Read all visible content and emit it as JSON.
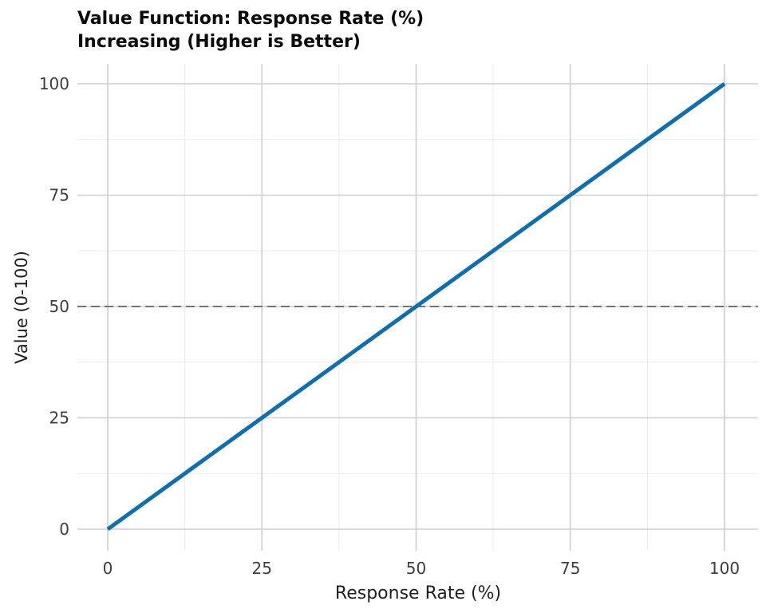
{
  "chart_data": {
    "type": "line",
    "title": "Value Function: Response Rate (%)\nIncreasing (Higher is Better)",
    "title_lines": [
      "Value Function: Response Rate (%)",
      "Increasing (Higher is Better)"
    ],
    "xlabel": "Response Rate (%)",
    "ylabel": "Value (0-100)",
    "x_ticks": [
      0,
      25,
      50,
      75,
      100
    ],
    "y_ticks": [
      0,
      25,
      50,
      75,
      100
    ],
    "xlim": [
      -5,
      105
    ],
    "ylim": [
      -5,
      105
    ],
    "grid": "major and minor gridlines",
    "legend": "none",
    "series": [
      {
        "name": "value function",
        "x": [
          0,
          25,
          50,
          75,
          100
        ],
        "y": [
          0,
          25,
          50,
          75,
          100
        ],
        "color": "#0f6fad",
        "linewidth": 5
      }
    ],
    "reference_line": {
      "y": 50,
      "style": "dashed",
      "color": "#737373",
      "linewidth": 2
    }
  },
  "colors": {
    "background": "#ffffff",
    "major_grid": "#d4d4d4",
    "minor_grid": "#ececec",
    "tick_label": "#3d3d3d",
    "axis_label": "#1f1f1f",
    "title": "#0a0a0a"
  }
}
